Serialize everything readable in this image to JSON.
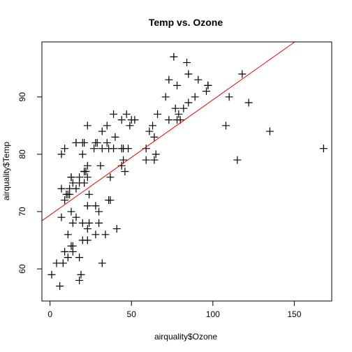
{
  "chart_data": {
    "type": "scatter",
    "title": "Temp vs. Ozone",
    "xlabel": "airquality$Ozone",
    "ylabel": "airquality$Temp",
    "xlim": [
      -5,
      173
    ],
    "ylim": [
      54.4,
      99.6
    ],
    "x_ticks": [
      0,
      50,
      100,
      150
    ],
    "y_ticks": [
      60,
      70,
      80,
      90
    ],
    "grid": false,
    "marker": "plus",
    "marker_color": "#000000",
    "points": [
      [
        41,
        67
      ],
      [
        36,
        72
      ],
      [
        12,
        74
      ],
      [
        18,
        62
      ],
      [
        28,
        66
      ],
      [
        23,
        65
      ],
      [
        19,
        59
      ],
      [
        8,
        61
      ],
      [
        7,
        74
      ],
      [
        16,
        69
      ],
      [
        11,
        66
      ],
      [
        14,
        68
      ],
      [
        18,
        58
      ],
      [
        14,
        64
      ],
      [
        34,
        66
      ],
      [
        6,
        57
      ],
      [
        30,
        68
      ],
      [
        11,
        62
      ],
      [
        1,
        59
      ],
      [
        11,
        73
      ],
      [
        4,
        61
      ],
      [
        32,
        61
      ],
      [
        23,
        67
      ],
      [
        45,
        81
      ],
      [
        115,
        79
      ],
      [
        37,
        76
      ],
      [
        29,
        82
      ],
      [
        71,
        90
      ],
      [
        39,
        87
      ],
      [
        23,
        85
      ],
      [
        21,
        77
      ],
      [
        37,
        72
      ],
      [
        20,
        65
      ],
      [
        12,
        73
      ],
      [
        13,
        76
      ],
      [
        135,
        84
      ],
      [
        49,
        85
      ],
      [
        32,
        81
      ],
      [
        64,
        83
      ],
      [
        40,
        83
      ],
      [
        77,
        88
      ],
      [
        97,
        92
      ],
      [
        97,
        92
      ],
      [
        85,
        89
      ],
      [
        10,
        73
      ],
      [
        27,
        81
      ],
      [
        7,
        80
      ],
      [
        48,
        81
      ],
      [
        35,
        82
      ],
      [
        61,
        84
      ],
      [
        79,
        87
      ],
      [
        63,
        85
      ],
      [
        16,
        74
      ],
      [
        80,
        86
      ],
      [
        108,
        85
      ],
      [
        20,
        82
      ],
      [
        52,
        86
      ],
      [
        82,
        88
      ],
      [
        50,
        86
      ],
      [
        64,
        79
      ],
      [
        59,
        81
      ],
      [
        39,
        81
      ],
      [
        9,
        81
      ],
      [
        16,
        82
      ],
      [
        78,
        86
      ],
      [
        35,
        85
      ],
      [
        66,
        87
      ],
      [
        122,
        89
      ],
      [
        89,
        90
      ],
      [
        110,
        90
      ],
      [
        44,
        86
      ],
      [
        28,
        82
      ],
      [
        65,
        80
      ],
      [
        22,
        77
      ],
      [
        59,
        79
      ],
      [
        23,
        76
      ],
      [
        31,
        78
      ],
      [
        44,
        78
      ],
      [
        21,
        77
      ],
      [
        9,
        72
      ],
      [
        45,
        79
      ],
      [
        168,
        81
      ],
      [
        73,
        86
      ],
      [
        76,
        97
      ],
      [
        118,
        94
      ],
      [
        84,
        96
      ],
      [
        85,
        94
      ],
      [
        96,
        91
      ],
      [
        78,
        92
      ],
      [
        73,
        93
      ],
      [
        91,
        93
      ],
      [
        47,
        87
      ],
      [
        32,
        84
      ],
      [
        20,
        80
      ],
      [
        23,
        78
      ],
      [
        21,
        75
      ],
      [
        24,
        73
      ],
      [
        44,
        81
      ],
      [
        21,
        82
      ],
      [
        28,
        71
      ],
      [
        9,
        63
      ],
      [
        13,
        70
      ],
      [
        46,
        77
      ],
      [
        18,
        75
      ],
      [
        13,
        76
      ],
      [
        24,
        68
      ],
      [
        16,
        82
      ],
      [
        13,
        64
      ],
      [
        23,
        71
      ],
      [
        36,
        81
      ],
      [
        7,
        69
      ],
      [
        14,
        63
      ],
      [
        30,
        70
      ],
      [
        14,
        75
      ],
      [
        18,
        76
      ],
      [
        20,
        68
      ]
    ],
    "regression": {
      "intercept": 69.41,
      "slope": 0.2009,
      "color": "#ff0000"
    }
  }
}
